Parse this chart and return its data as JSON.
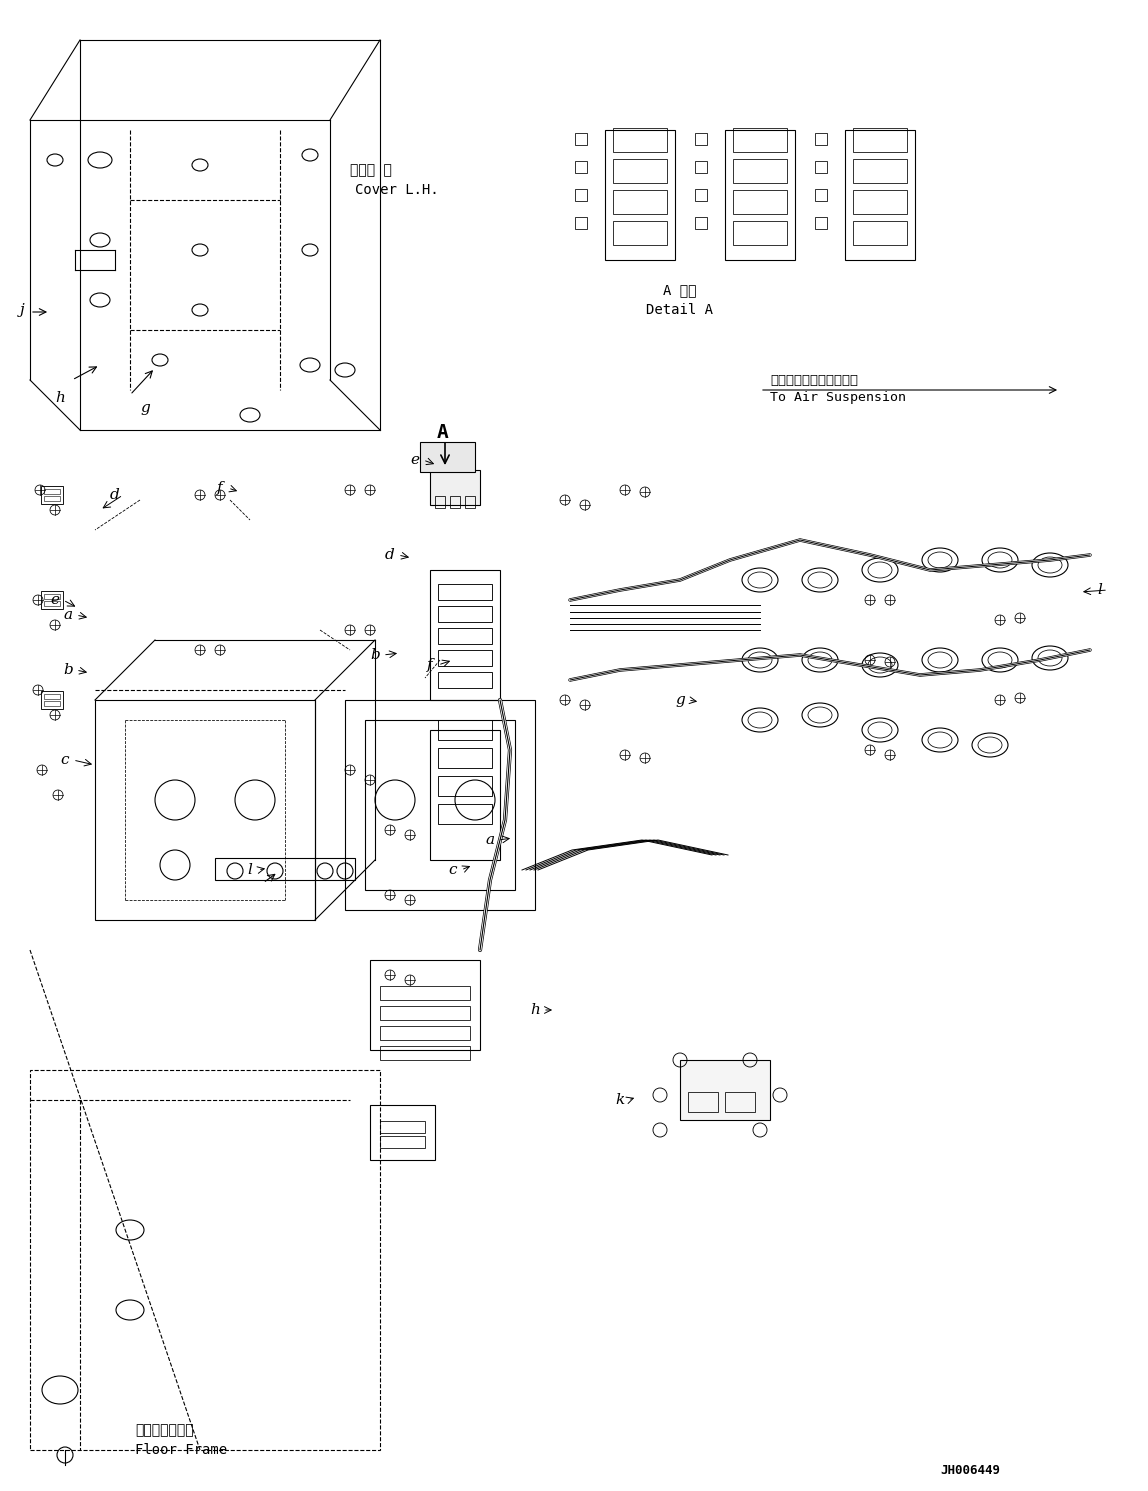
{
  "bg_color": "#ffffff",
  "line_color": "#000000",
  "figsize": [
    11.48,
    14.91
  ],
  "dpi": 100,
  "title_code": "JH006449",
  "labels": {
    "cover_jp": "カバー 左",
    "cover_en": "Cover L.H.",
    "detail_jp": "A 詳細",
    "detail_en": "Detail A",
    "air_jp": "エアーサスペンションへ",
    "air_en": "To Air Suspension",
    "floor_jp": "フロアフレーム",
    "floor_en": "Floor Frame"
  },
  "part_labels": [
    "a",
    "b",
    "c",
    "d",
    "e",
    "f",
    "g",
    "h",
    "j",
    "k",
    "l"
  ],
  "arrow_label_A": "A"
}
